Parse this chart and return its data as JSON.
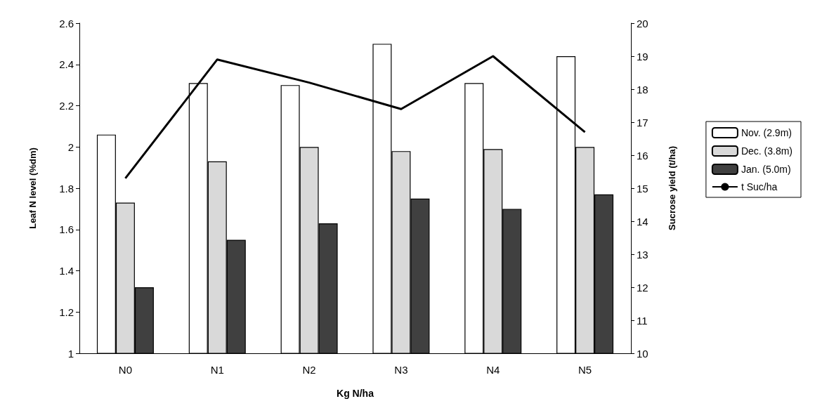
{
  "chart_data": {
    "type": "bar",
    "xlabel": "Kg N/ha",
    "ylabel": "Leaf N level (%dm)",
    "y2label": "Sucrose yield (t/ha)",
    "categories": [
      "N0",
      "N1",
      "N2",
      "N3",
      "N4",
      "N5"
    ],
    "series": [
      {
        "name": "Nov. (2.9m)",
        "color": "#ffffff",
        "values": [
          2.06,
          2.31,
          2.3,
          2.5,
          2.31,
          2.44
        ]
      },
      {
        "name": "Dec. (3.8m)",
        "color": "#d9d9d9",
        "values": [
          1.73,
          1.93,
          2.0,
          1.98,
          1.99,
          2.0
        ]
      },
      {
        "name": "Jan. (5.0m)",
        "color": "#404040",
        "values": [
          1.32,
          1.55,
          1.63,
          1.75,
          1.7,
          1.77
        ]
      },
      {
        "name": "t Suc/ha",
        "type": "line",
        "axis": "y2",
        "color": "#000000",
        "values": [
          15.3,
          18.9,
          18.2,
          17.4,
          19.0,
          16.7
        ]
      }
    ],
    "ylim": [
      1,
      2.6
    ],
    "yticks": [
      1,
      1.2,
      1.4,
      1.6,
      1.8,
      2,
      2.2,
      2.4,
      2.6
    ],
    "y2lim": [
      10,
      20
    ],
    "y2ticks": [
      10,
      11,
      12,
      13,
      14,
      15,
      16,
      17,
      18,
      19,
      20
    ],
    "grid": false,
    "legend": "right",
    "marker": "none",
    "line_style": "solid"
  }
}
